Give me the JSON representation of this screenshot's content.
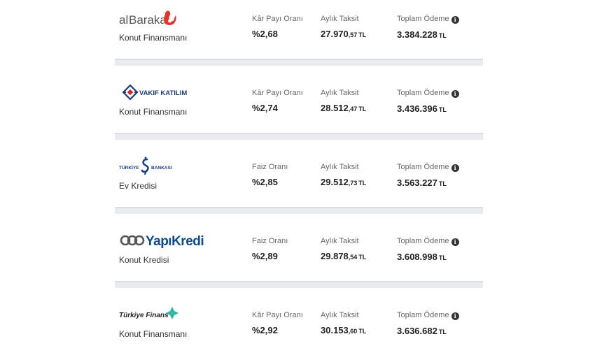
{
  "offers": [
    {
      "bank": "alBaraka",
      "product": "Konut Finansmanı",
      "rate_label": "Kâr Payı Oranı",
      "rate": "%2,68",
      "monthly_label": "Aylık Taksit",
      "monthly_main": "27.970",
      "monthly_cents": ",57",
      "total_label": "Toplam Ödeme",
      "total": "3.384.228",
      "currency": "TL"
    },
    {
      "bank": "VAKIF KATILIM",
      "product": "Konut Finansmanı",
      "rate_label": "Kâr Payı Oranı",
      "rate": "%2,74",
      "monthly_label": "Aylık Taksit",
      "monthly_main": "28.512",
      "monthly_cents": ",47",
      "total_label": "Toplam Ödeme",
      "total": "3.436.396",
      "currency": "TL"
    },
    {
      "bank": "TÜRKİYE İŞ BANKASI",
      "product": "Ev Kredisi",
      "rate_label": "Faiz Oranı",
      "rate": "%2,85",
      "monthly_label": "Aylık Taksit",
      "monthly_main": "29.512",
      "monthly_cents": ",73",
      "total_label": "Toplam Ödeme",
      "total": "3.563.227",
      "currency": "TL"
    },
    {
      "bank": "YapıKredi",
      "product": "Konut Kredisi",
      "rate_label": "Faiz Oranı",
      "rate": "%2,89",
      "monthly_label": "Aylık Taksit",
      "monthly_main": "29.878",
      "monthly_cents": ",54",
      "total_label": "Toplam Ödeme",
      "total": "3.608.998",
      "currency": "TL"
    },
    {
      "bank": "Türkiye Finans",
      "product": "Konut Finansmanı",
      "rate_label": "Kâr Payı Oranı",
      "rate": "%2,92",
      "monthly_label": "Aylık Taksit",
      "monthly_main": "30.153",
      "monthly_cents": ",60",
      "total_label": "Toplam Ödeme",
      "total": "3.636.682",
      "currency": "TL"
    }
  ],
  "colors": {
    "albaraka_red": "#e4352b",
    "albaraka_text": "#555555",
    "vakif_blue": "#1d3c78",
    "vakif_red": "#d8232a",
    "isbank_blue": "#1b3a8c",
    "yapikredi_blue": "#0b4a8c",
    "turkiyefinans_green": "#2fb5a2",
    "separator": "#e9ebee"
  },
  "info_icon": "info-circle-icon"
}
